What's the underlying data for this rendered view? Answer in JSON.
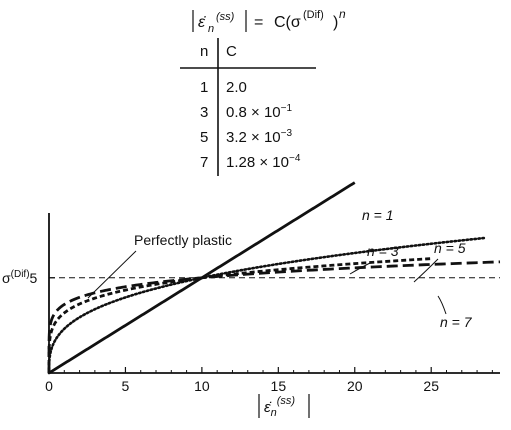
{
  "formula": {
    "lhs_symbol": "ε̇",
    "lhs_sub": "n",
    "lhs_sup": "(ss)",
    "rhs_prefix": "C(σ",
    "rhs_sup": "(Dif)",
    "rhs_suffix": ")",
    "exponent": "n",
    "equals": "="
  },
  "table": {
    "headers": [
      "n",
      "C"
    ],
    "rows": [
      {
        "n": "1",
        "mant": "2.0",
        "exp": ""
      },
      {
        "n": "3",
        "mant": "0.8 × 10",
        "exp": "−1"
      },
      {
        "n": "5",
        "mant": "3.2 × 10",
        "exp": "−3"
      },
      {
        "n": "7",
        "mant": "1.28 × 10",
        "exp": "−4"
      }
    ]
  },
  "chart_data": {
    "type": "line",
    "xlim": [
      0,
      29.5
    ],
    "ylim": [
      0,
      8.4
    ],
    "xticks": [
      0,
      5,
      10,
      15,
      20,
      25
    ],
    "ytick_label": {
      "value": 5,
      "prefix": "σ",
      "sup": "(Dif)",
      "suffix": "5"
    },
    "xlabel": {
      "symbol": "ε̇",
      "sub": "n",
      "sup": "(ss)"
    },
    "series": [
      {
        "name": "n = 1",
        "n": 1,
        "C": 2.0,
        "x_end": 20,
        "style": "solid"
      },
      {
        "name": "n = 3",
        "n": 3,
        "C": 0.08,
        "x_end": 28.5,
        "style": "dotted"
      },
      {
        "name": "n = 5",
        "n": 5,
        "C": 0.0032,
        "x_end": 25,
        "style": "short-dash"
      },
      {
        "name": "n = 7",
        "n": 7,
        "C": 0.000128,
        "x_end": 29.5,
        "style": "long-dash"
      }
    ],
    "perfectly_plastic": {
      "label": "Perfectly plastic",
      "y": 5
    },
    "grid": false
  }
}
